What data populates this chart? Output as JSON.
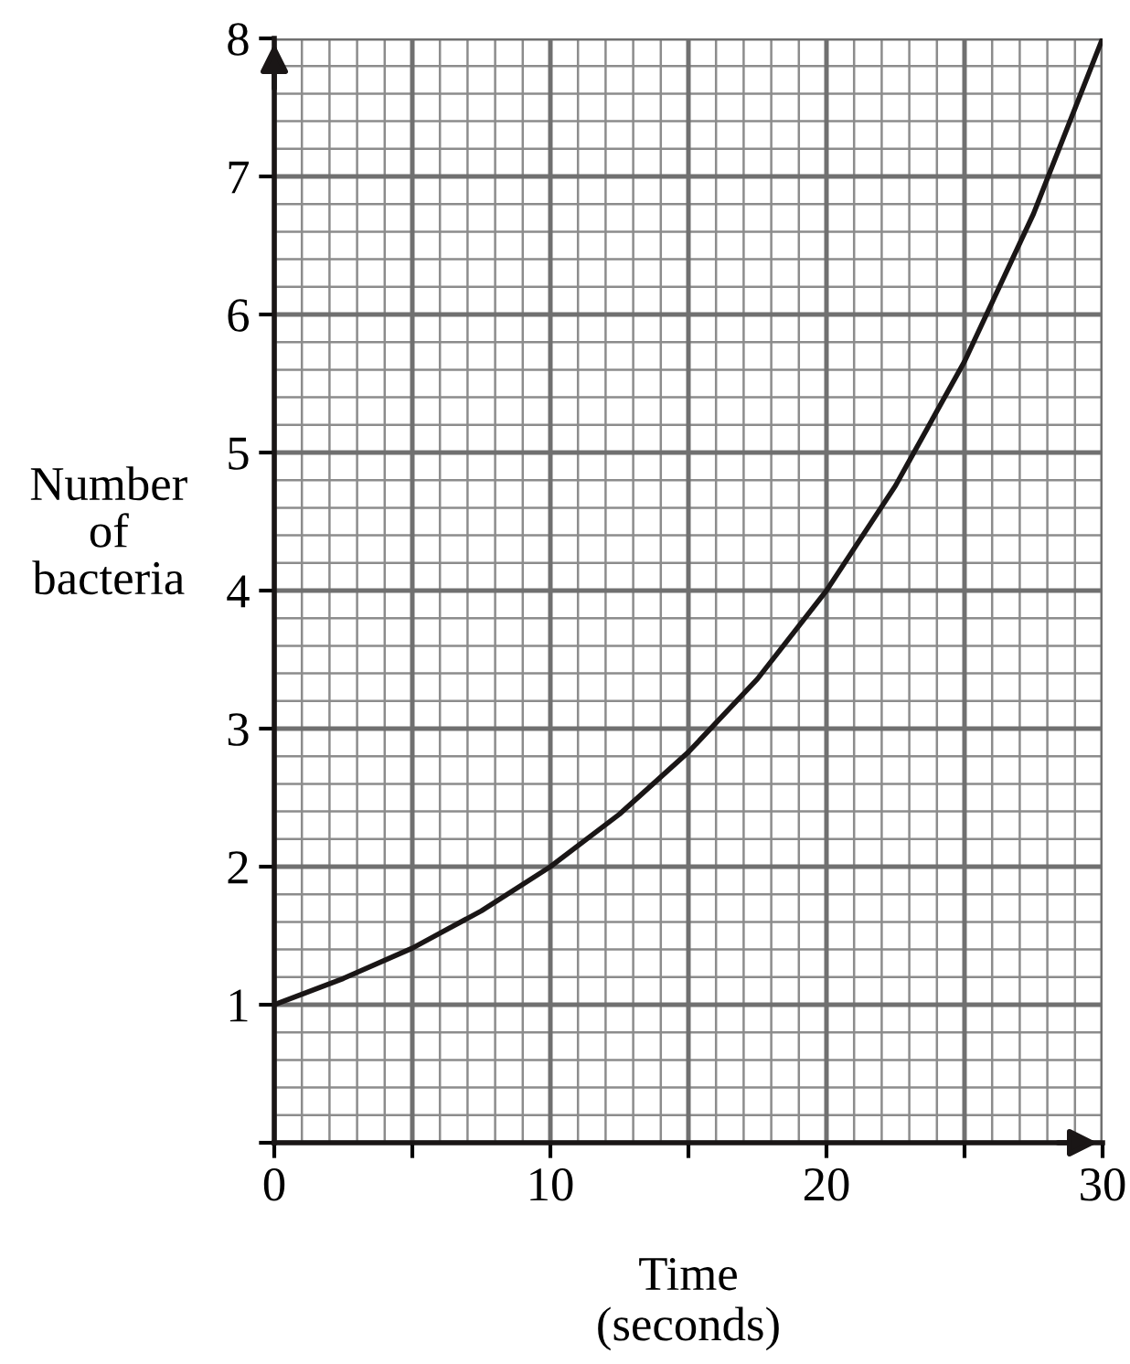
{
  "chart_data": {
    "type": "line",
    "xlabel": "Time\n(seconds)",
    "ylabel": "Number\nof\nbacteria",
    "x": [
      0,
      2.5,
      5,
      7.5,
      10,
      12.5,
      15,
      17.5,
      20,
      22.5,
      25,
      27.5,
      30
    ],
    "series": [
      {
        "color": "#1a1616",
        "values": [
          1,
          1.19,
          1.41,
          1.68,
          2,
          2.38,
          2.83,
          3.36,
          4,
          4.76,
          5.66,
          6.73,
          8
        ]
      }
    ],
    "xlim": [
      0,
      30
    ],
    "ylim": [
      0,
      8
    ],
    "xticks": [
      0,
      {
        "value": 5,
        "label": null
      },
      10,
      {
        "value": 15,
        "label": null
      },
      20,
      {
        "value": 25,
        "label": null
      },
      30
    ],
    "yticks": [
      {
        "value": 0,
        "label": null
      },
      1,
      2,
      3,
      4,
      5,
      6,
      7,
      8
    ],
    "grid": true,
    "marker": "none",
    "line_style": "solid"
  }
}
